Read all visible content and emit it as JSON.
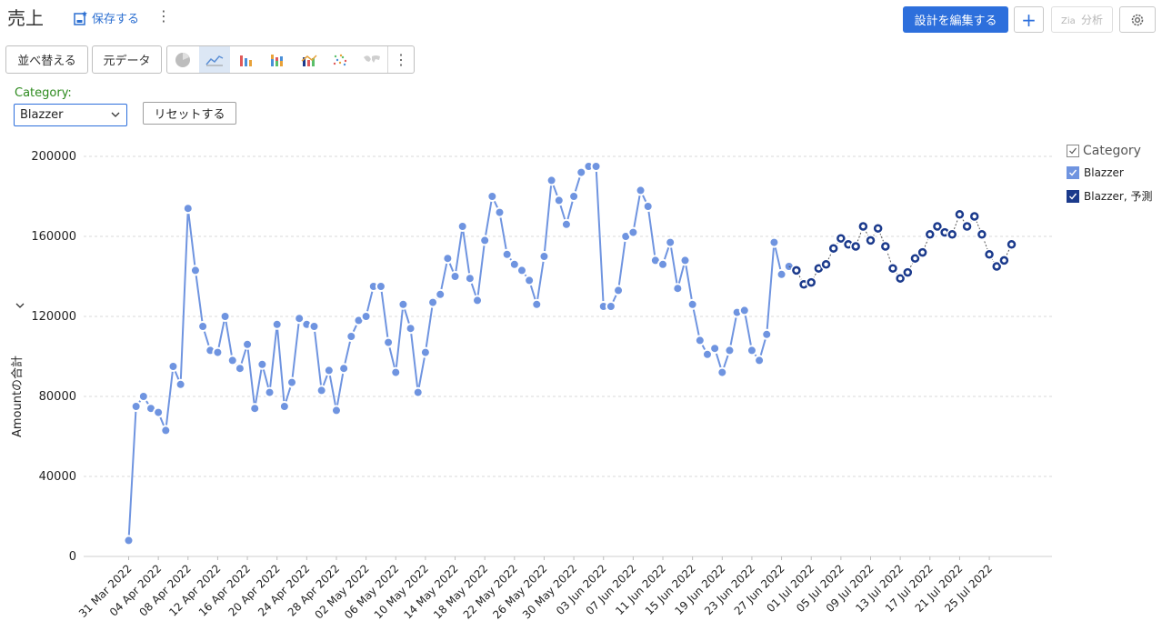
{
  "header": {
    "title": "売上",
    "save_label": "保存する",
    "edit_label": "設計を編集する",
    "analysis_label": "分析"
  },
  "toolbar": {
    "sort_label": "並べ替える",
    "source_label": "元データ",
    "chart_types": [
      "pie-chart-icon",
      "line-chart-icon",
      "bar-chart-icon",
      "stacked-bar-chart-icon",
      "combo-chart-icon",
      "scatter-chart-icon",
      "map-chart-icon"
    ],
    "active_chart_type": "line-chart-icon"
  },
  "filter": {
    "label": "Category:",
    "selected": "Blazzer",
    "reset_label": "リセットする"
  },
  "legend": {
    "title": "Category",
    "items": [
      "Blazzer",
      "Blazzer, 予測"
    ]
  },
  "colors": {
    "actual": "#6f94e0",
    "forecast": "#1b3a8c",
    "accent": "#2d6fdc"
  },
  "chart_data": {
    "type": "line",
    "ylabel": "Amountの合計",
    "ylim": [
      0,
      200000
    ],
    "yticks": [
      0,
      40000,
      80000,
      120000,
      160000,
      200000
    ],
    "xtick_labels": [
      "31 Mar 2022",
      "04 Apr 2022",
      "08 Apr 2022",
      "12 Apr 2022",
      "16 Apr 2022",
      "20 Apr 2022",
      "24 Apr 2022",
      "28 Apr 2022",
      "02 May 2022",
      "06 May 2022",
      "10 May 2022",
      "14 May 2022",
      "18 May 2022",
      "22 May 2022",
      "26 May 2022",
      "30 May 2022",
      "03 Jun 2022",
      "07 Jun 2022",
      "11 Jun 2022",
      "15 Jun 2022",
      "19 Jun 2022",
      "23 Jun 2022",
      "27 Jun 2022",
      "01 Jul 2022",
      "05 Jul 2022",
      "09 Jul 2022",
      "13 Jul 2022",
      "17 Jul 2022",
      "21 Jul 2022",
      "25 Jul 2022"
    ],
    "grid": true,
    "legend_position": "right",
    "x_start": "31 Mar 2022",
    "series": [
      {
        "name": "Blazzer",
        "values": [
          8000,
          75000,
          80000,
          74000,
          72000,
          63000,
          95000,
          86000,
          174000,
          143000,
          115000,
          103000,
          102000,
          120000,
          98000,
          94000,
          106000,
          74000,
          96000,
          82000,
          116000,
          75000,
          87000,
          119000,
          116000,
          115000,
          83000,
          93000,
          73000,
          94000,
          110000,
          118000,
          120000,
          135000,
          135000,
          107000,
          92000,
          126000,
          114000,
          82000,
          102000,
          127000,
          131000,
          149000,
          140000,
          165000,
          139000,
          128000,
          158000,
          180000,
          172000,
          151000,
          146000,
          143000,
          138000,
          126000,
          150000,
          188000,
          178000,
          166000,
          180000,
          192000,
          195000,
          195000,
          125000,
          125000,
          133000,
          160000,
          162000,
          183000,
          175000,
          148000,
          146000,
          157000,
          134000,
          148000,
          126000,
          108000,
          101000,
          104000,
          92000,
          103000,
          122000,
          123000,
          103000,
          98000,
          111000,
          157000,
          141000,
          145000
        ]
      },
      {
        "name": "Blazzer, 予測",
        "values": [
          143000,
          136000,
          137000,
          144000,
          146000,
          154000,
          159000,
          156000,
          155000,
          165000,
          158000,
          164000,
          155000,
          144000,
          139000,
          142000,
          149000,
          152000,
          161000,
          165000,
          162000,
          161000,
          171000,
          165000,
          170000,
          161000,
          151000,
          145000,
          148000,
          156000
        ]
      }
    ]
  }
}
